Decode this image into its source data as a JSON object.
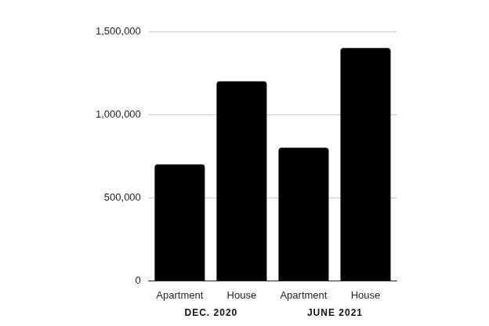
{
  "chart_data": {
    "type": "bar",
    "groups": [
      {
        "label": "DEC. 2020",
        "categories": [
          "Apartment",
          "House"
        ],
        "values": [
          700000,
          1200000
        ]
      },
      {
        "label": "JUNE 2021",
        "categories": [
          "Apartment",
          "House"
        ],
        "values": [
          800000,
          1400000
        ]
      }
    ],
    "color": "#000000",
    "ylim": [
      0,
      1500000
    ],
    "yticks": [
      0,
      {
        "value": 500000,
        "label": "500,000"
      },
      {
        "value": 1000000,
        "label": "1,000,000"
      },
      {
        "value": 1500000,
        "label": "1,500,000"
      }
    ],
    "grid": true
  }
}
